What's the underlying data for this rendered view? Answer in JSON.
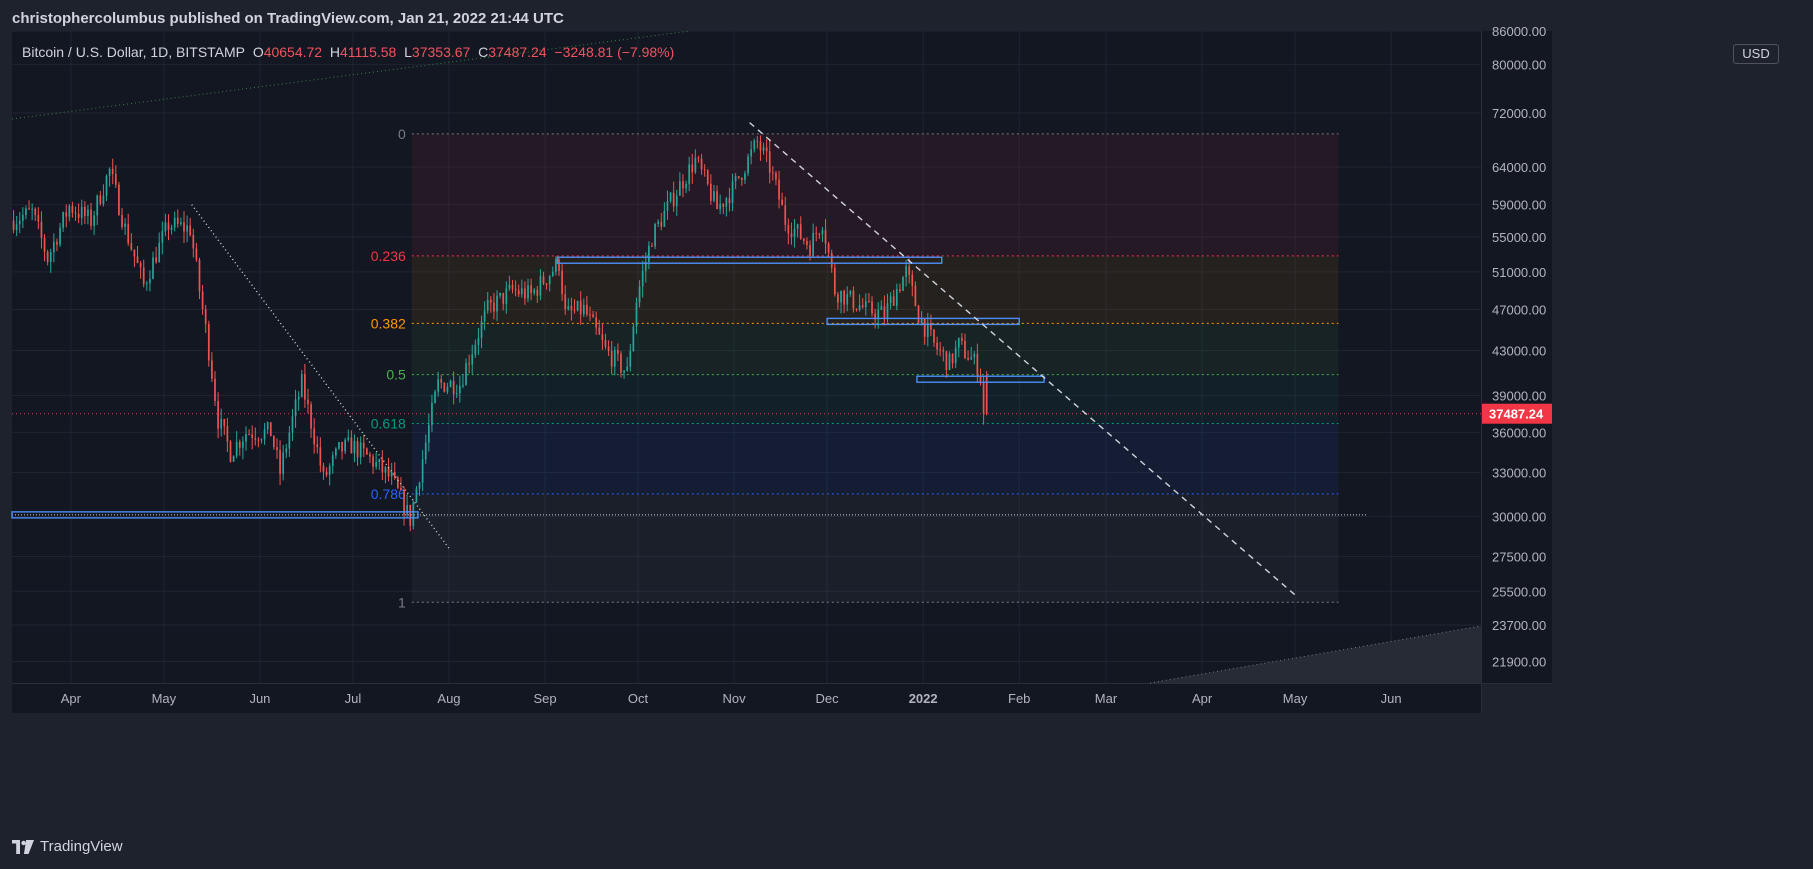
{
  "header": {
    "publish_line": "christophercolumbus published on TradingView.com, Jan 21, 2022 21:44 UTC"
  },
  "legend": {
    "symbol": "Bitcoin / U.S. Dollar, 1D, BITSTAMP",
    "o_label": "O",
    "o_value": "40654.72",
    "h_label": "H",
    "h_value": "41115.58",
    "l_label": "L",
    "l_value": "37353.67",
    "c_label": "C",
    "c_value": "37487.24",
    "change": "−3248.81 (−7.98%)"
  },
  "price_axis": {
    "currency": "USD",
    "last_price": "37487.24",
    "last_price_color": "#f23645"
  },
  "footer": {
    "brand": "TradingView"
  },
  "colors": {
    "background": "#131722",
    "grid": "#1f2431",
    "up": "#26a69a",
    "down": "#ef5350",
    "hline": "#4c8df6"
  },
  "chart_data": {
    "type": "candlestick",
    "title": "Bitcoin / U.S. Dollar, 1D, BITSTAMP",
    "x_range": [
      "2021-03-13",
      "2022-06-30"
    ],
    "y_scale": "log",
    "y_range": [
      20900,
      86000
    ],
    "y_ticks": [
      "86000.00",
      "80000.00",
      "72000.00",
      "64000.00",
      "59000.00",
      "55000.00",
      "51000.00",
      "47000.00",
      "43000.00",
      "39000.00",
      "36000.00",
      "33000.00",
      "30000.00",
      "27500.00",
      "25500.00",
      "23700.00",
      "21900.00"
    ],
    "x_ticks": [
      {
        "date": "2021-04-01",
        "label": "Apr"
      },
      {
        "date": "2021-05-01",
        "label": "May"
      },
      {
        "date": "2021-06-01",
        "label": "Jun"
      },
      {
        "date": "2021-07-01",
        "label": "Jul"
      },
      {
        "date": "2021-08-01",
        "label": "Aug"
      },
      {
        "date": "2021-09-01",
        "label": "Sep"
      },
      {
        "date": "2021-10-01",
        "label": "Oct"
      },
      {
        "date": "2021-11-01",
        "label": "Nov"
      },
      {
        "date": "2021-12-01",
        "label": "Dec"
      },
      {
        "date": "2022-01-01",
        "label": "2022"
      },
      {
        "date": "2022-02-01",
        "label": "Feb"
      },
      {
        "date": "2022-03-01",
        "label": "Mar"
      },
      {
        "date": "2022-04-01",
        "label": "Apr"
      },
      {
        "date": "2022-05-01",
        "label": "May"
      },
      {
        "date": "2022-06-01",
        "label": "Jun"
      }
    ],
    "price_path": [
      [
        "2021-03-13",
        57000
      ],
      [
        "2021-03-20",
        58000
      ],
      [
        "2021-03-25",
        52500
      ],
      [
        "2021-04-01",
        58800
      ],
      [
        "2021-04-08",
        57000
      ],
      [
        "2021-04-14",
        63500
      ],
      [
        "2021-04-19",
        56000
      ],
      [
        "2021-04-25",
        49500
      ],
      [
        "2021-05-03",
        56500
      ],
      [
        "2021-05-10",
        56000
      ],
      [
        "2021-05-13",
        49000
      ],
      [
        "2021-05-19",
        37000
      ],
      [
        "2021-05-23",
        34500
      ],
      [
        "2021-05-28",
        36000
      ],
      [
        "2021-06-05",
        36000
      ],
      [
        "2021-06-08",
        33000
      ],
      [
        "2021-06-15",
        40000
      ],
      [
        "2021-06-22",
        32500
      ],
      [
        "2021-06-27",
        34600
      ],
      [
        "2021-07-01",
        35000
      ],
      [
        "2021-07-07",
        34000
      ],
      [
        "2021-07-14",
        32500
      ],
      [
        "2021-07-20",
        29800
      ],
      [
        "2021-07-24",
        34000
      ],
      [
        "2021-07-29",
        40000
      ],
      [
        "2021-08-05",
        40000
      ],
      [
        "2021-08-14",
        47000
      ],
      [
        "2021-08-22",
        49000
      ],
      [
        "2021-08-28",
        48500
      ],
      [
        "2021-09-06",
        52000
      ],
      [
        "2021-09-08",
        46500
      ],
      [
        "2021-09-14",
        47000
      ],
      [
        "2021-09-21",
        43000
      ],
      [
        "2021-09-28",
        41000
      ],
      [
        "2021-10-01",
        48000
      ],
      [
        "2021-10-06",
        55000
      ],
      [
        "2021-10-15",
        61500
      ],
      [
        "2021-10-20",
        65000
      ],
      [
        "2021-10-27",
        58500
      ],
      [
        "2021-11-01",
        61000
      ],
      [
        "2021-11-09",
        67500
      ],
      [
        "2021-11-13",
        64000
      ],
      [
        "2021-11-18",
        57000
      ],
      [
        "2021-11-26",
        54000
      ],
      [
        "2021-11-30",
        57000
      ],
      [
        "2021-12-04",
        49000
      ],
      [
        "2021-12-09",
        48000
      ],
      [
        "2021-12-14",
        47000
      ],
      [
        "2021-12-20",
        46500
      ],
      [
        "2021-12-27",
        51000
      ],
      [
        "2021-12-31",
        46500
      ],
      [
        "2022-01-05",
        43500
      ],
      [
        "2022-01-10",
        41800
      ],
      [
        "2022-01-13",
        43500
      ],
      [
        "2022-01-19",
        41600
      ],
      [
        "2022-01-20",
        40650
      ],
      [
        "2022-01-21",
        37487
      ]
    ],
    "last_candle": {
      "date": "2022-01-21",
      "open": 40654.72,
      "high": 41115.58,
      "low": 37353.67,
      "close": 37487.24
    },
    "fibonacci": {
      "start_date": "2021-07-20",
      "end_date": "2022-05-15",
      "levels": [
        {
          "ratio": "0",
          "price": 68800,
          "color": "#787b86"
        },
        {
          "ratio": "0.236",
          "price": 52800,
          "color": "#f23645"
        },
        {
          "ratio": "0.382",
          "price": 45600,
          "color": "#ff9800"
        },
        {
          "ratio": "0.5",
          "price": 40800,
          "color": "#4caf50"
        },
        {
          "ratio": "0.618",
          "price": 36700,
          "color": "#089981"
        },
        {
          "ratio": "0.786",
          "price": 31500,
          "color": "#2962ff"
        },
        {
          "ratio": "1",
          "price": 24900,
          "color": "#787b86"
        }
      ]
    },
    "horizontal_levels": [
      {
        "price": 30100,
        "start": "2021-03-13",
        "end": "2021-07-22"
      },
      {
        "price": 52300,
        "start": "2021-09-05",
        "end": "2022-01-07"
      },
      {
        "price": 45800,
        "start": "2021-12-01",
        "end": "2022-02-01"
      },
      {
        "price": 40400,
        "start": "2021-12-30",
        "end": "2022-02-09"
      }
    ],
    "trendlines": [
      {
        "from": [
          "2021-05-10",
          59000
        ],
        "to": [
          "2021-08-01",
          28000
        ],
        "style": "dotted"
      },
      {
        "from": [
          "2021-11-06",
          70500
        ],
        "to": [
          "2022-05-01",
          25300
        ],
        "style": "dashed"
      }
    ],
    "current_price_line": 37487.24,
    "support_line": 30100
  }
}
